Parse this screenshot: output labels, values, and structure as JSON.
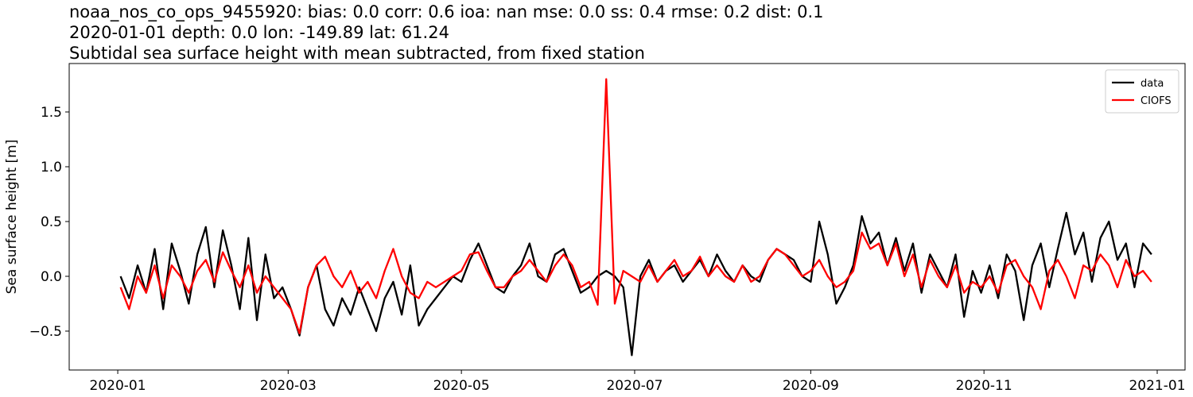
{
  "chart_data": {
    "type": "line",
    "title": [
      "noaa_nos_co_ops_9455920: bias: 0.0  corr: 0.6  ioa: nan  mse: 0.0  ss: 0.4  rmse: 0.2  dist: 0.1",
      "2020-01-01 depth: 0.0 lon: -149.89 lat: 61.24",
      "Subtidal sea surface height with mean subtracted, from fixed station"
    ],
    "y_label": "Sea surface height [m]",
    "x": [
      1,
      4,
      7,
      10,
      13,
      16,
      19,
      22,
      25,
      28,
      31,
      34,
      37,
      40,
      43,
      46,
      49,
      52,
      55,
      58,
      61,
      64,
      67,
      70,
      73,
      76,
      79,
      82,
      85,
      88,
      91,
      94,
      97,
      100,
      103,
      106,
      109,
      112,
      115,
      118,
      121,
      124,
      127,
      130,
      133,
      136,
      139,
      142,
      145,
      148,
      151,
      154,
      157,
      160,
      163,
      166,
      169,
      172,
      175,
      178,
      181,
      184,
      187,
      190,
      193,
      196,
      199,
      202,
      205,
      208,
      211,
      214,
      217,
      220,
      223,
      226,
      229,
      232,
      235,
      238,
      241,
      244,
      247,
      250,
      253,
      256,
      259,
      262,
      265,
      268,
      271,
      274,
      277,
      280,
      283,
      286,
      289,
      292,
      295,
      298,
      301,
      304,
      307,
      310,
      313,
      316,
      319,
      322,
      325,
      328,
      331,
      334,
      337,
      340,
      343,
      346,
      349,
      352,
      355,
      358,
      361,
      364
    ],
    "series": [
      {
        "name": "data",
        "color": "#000000",
        "values": [
          0.0,
          -0.2,
          0.1,
          -0.15,
          0.25,
          -0.3,
          0.3,
          0.05,
          -0.25,
          0.2,
          0.45,
          -0.1,
          0.42,
          0.1,
          -0.3,
          0.35,
          -0.4,
          0.2,
          -0.2,
          -0.1,
          -0.3,
          -0.54,
          -0.1,
          0.1,
          -0.3,
          -0.45,
          -0.2,
          -0.35,
          -0.1,
          -0.3,
          -0.5,
          -0.2,
          -0.05,
          -0.35,
          0.1,
          -0.45,
          -0.3,
          -0.2,
          -0.1,
          0.0,
          -0.05,
          0.15,
          0.3,
          0.1,
          -0.1,
          -0.15,
          0.0,
          0.1,
          0.3,
          0.0,
          -0.05,
          0.2,
          0.25,
          0.05,
          -0.15,
          -0.1,
          0.0,
          0.05,
          0.0,
          -0.1,
          -0.72,
          0.0,
          0.15,
          -0.05,
          0.05,
          0.1,
          -0.05,
          0.05,
          0.15,
          0.0,
          0.2,
          0.05,
          -0.05,
          0.1,
          0.0,
          -0.05,
          0.15,
          0.25,
          0.2,
          0.15,
          0.0,
          -0.05,
          0.5,
          0.2,
          -0.25,
          -0.1,
          0.1,
          0.55,
          0.3,
          0.4,
          0.1,
          0.35,
          0.05,
          0.3,
          -0.15,
          0.2,
          0.05,
          -0.1,
          0.2,
          -0.37,
          0.05,
          -0.15,
          0.1,
          -0.2,
          0.2,
          0.05,
          -0.4,
          0.1,
          0.3,
          -0.1,
          0.25,
          0.58,
          0.2,
          0.4,
          -0.05,
          0.35,
          0.5,
          0.15,
          0.3,
          -0.1,
          0.3,
          0.2
        ]
      },
      {
        "name": "CIOFS",
        "color": "#ff0000",
        "values": [
          -0.1,
          -0.3,
          0.0,
          -0.15,
          0.1,
          -0.2,
          0.1,
          0.0,
          -0.15,
          0.05,
          0.15,
          -0.05,
          0.22,
          0.05,
          -0.1,
          0.1,
          -0.15,
          0.0,
          -0.1,
          -0.2,
          -0.3,
          -0.52,
          -0.1,
          0.1,
          0.18,
          0.0,
          -0.1,
          0.05,
          -0.15,
          -0.05,
          -0.2,
          0.05,
          0.25,
          0.0,
          -0.15,
          -0.2,
          -0.05,
          -0.1,
          -0.05,
          0.0,
          0.05,
          0.2,
          0.22,
          0.05,
          -0.1,
          -0.1,
          0.0,
          0.05,
          0.15,
          0.05,
          -0.05,
          0.1,
          0.2,
          0.1,
          -0.1,
          -0.05,
          -0.26,
          1.8,
          -0.25,
          0.05,
          0.0,
          -0.05,
          0.1,
          -0.05,
          0.05,
          0.15,
          0.0,
          0.05,
          0.18,
          0.0,
          0.1,
          0.0,
          -0.05,
          0.1,
          -0.05,
          0.0,
          0.15,
          0.25,
          0.2,
          0.1,
          0.0,
          0.05,
          0.15,
          0.0,
          -0.1,
          -0.05,
          0.05,
          0.4,
          0.25,
          0.3,
          0.1,
          0.3,
          0.0,
          0.2,
          -0.1,
          0.15,
          0.0,
          -0.1,
          0.1,
          -0.15,
          -0.05,
          -0.1,
          0.0,
          -0.15,
          0.1,
          0.15,
          0.0,
          -0.1,
          -0.3,
          0.05,
          0.15,
          0.0,
          -0.2,
          0.1,
          0.05,
          0.2,
          0.1,
          -0.1,
          0.15,
          0.0,
          0.05,
          -0.05
        ]
      }
    ],
    "xlim": [
      -17.1,
      375.8
    ],
    "xticks": [
      {
        "value": 0,
        "label": "2020-01"
      },
      {
        "value": 60,
        "label": "2020-03"
      },
      {
        "value": 121,
        "label": "2020-05"
      },
      {
        "value": 182,
        "label": "2020-07"
      },
      {
        "value": 244,
        "label": "2020-09"
      },
      {
        "value": 305,
        "label": "2020-11"
      },
      {
        "value": 366,
        "label": "2021-01"
      }
    ],
    "ylim": [
      -0.855,
      1.942
    ],
    "yticks": [
      {
        "value": -0.5,
        "label": "−0.5"
      },
      {
        "value": 0,
        "label": "0.0"
      },
      {
        "value": 0.5,
        "label": "0.5"
      },
      {
        "value": 1,
        "label": "1.0"
      },
      {
        "value": 1.5,
        "label": "1.5"
      }
    ],
    "legend": "upper right",
    "grid": false
  }
}
